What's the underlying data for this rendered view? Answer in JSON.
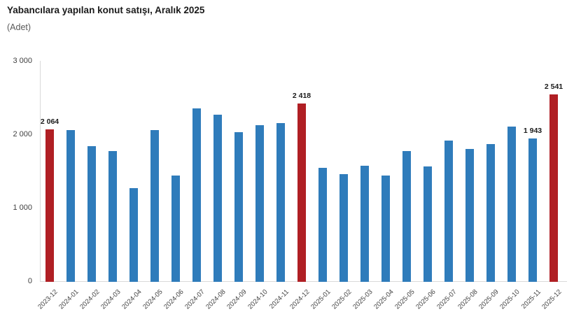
{
  "chart_data": {
    "type": "bar",
    "title": "Yabancılara yapılan konut satışı, Aralık 2025",
    "subtitle": "(Adet)",
    "xlabel": "",
    "ylabel": "",
    "grid": false,
    "legend": "none",
    "ylim": [
      0,
      3000
    ],
    "yticks": [
      {
        "v": 0,
        "label": "0"
      },
      {
        "v": 1000,
        "label": "1 000"
      },
      {
        "v": 2000,
        "label": "2 000"
      },
      {
        "v": 3000,
        "label": "3 000"
      }
    ],
    "categories": [
      "2023-12",
      "2024-01",
      "2024-02",
      "2024-03",
      "2024-04",
      "2024-05",
      "2024-06",
      "2024-07",
      "2024-08",
      "2024-09",
      "2024-10",
      "2024-11",
      "2024-12",
      "2025-01",
      "2025-02",
      "2025-03",
      "2025-04",
      "2025-05",
      "2025-06",
      "2025-07",
      "2025-08",
      "2025-09",
      "2025-10",
      "2025-11",
      "2025-12"
    ],
    "values": [
      2064,
      2055,
      1840,
      1770,
      1270,
      2060,
      1440,
      2355,
      2263,
      2025,
      2125,
      2155,
      2418,
      1545,
      1455,
      1570,
      1435,
      1770,
      1560,
      1910,
      1800,
      1865,
      2105,
      1943,
      2541
    ],
    "highlight_indices": [
      0,
      12,
      24
    ],
    "point_labels": {
      "0": "2 064",
      "12": "2 418",
      "23": "1 943",
      "24": "2 541"
    },
    "colors": {
      "bar": "#2F7CBB",
      "highlight": "#B01F24",
      "axis": "#D9D9D9",
      "tick_text": "#404040",
      "label_text": "#1A1A1A"
    }
  }
}
